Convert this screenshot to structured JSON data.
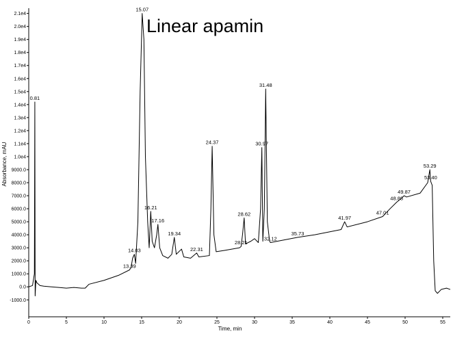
{
  "chart_data": {
    "type": "line",
    "title": "Linear apamin",
    "x_label": "Time, min",
    "y_label": "Absorbance, mAU",
    "xlim": [
      0,
      56
    ],
    "ylim": [
      -2300,
      21400
    ],
    "xticks": [
      0,
      5,
      10,
      15,
      20,
      25,
      30,
      35,
      40,
      45,
      50,
      55
    ],
    "yticks": [
      {
        "value": 21000,
        "label": "2.1e4"
      },
      {
        "value": 20000,
        "label": "2.0e4"
      },
      {
        "value": 19000,
        "label": "1.9e4"
      },
      {
        "value": 18000,
        "label": "1.8e4"
      },
      {
        "value": 17000,
        "label": "1.7e4"
      },
      {
        "value": 16000,
        "label": "1.6e4"
      },
      {
        "value": 15000,
        "label": "1.5e4"
      },
      {
        "value": 14000,
        "label": "1.4e4"
      },
      {
        "value": 13000,
        "label": "1.3e4"
      },
      {
        "value": 12000,
        "label": "1.2e4"
      },
      {
        "value": 11000,
        "label": "1.1e4"
      },
      {
        "value": 10000,
        "label": "1.0e4"
      },
      {
        "value": 9000,
        "label": "9000.0"
      },
      {
        "value": 8000,
        "label": "8000.0"
      },
      {
        "value": 7000,
        "label": "7000.0"
      },
      {
        "value": 6000,
        "label": "6000.0"
      },
      {
        "value": 5000,
        "label": "5000.0"
      },
      {
        "value": 4000,
        "label": "4000.0"
      },
      {
        "value": 3000,
        "label": "3000.0"
      },
      {
        "value": 2000,
        "label": "2000.0"
      },
      {
        "value": 1000,
        "label": "1000.0"
      },
      {
        "value": 0,
        "label": "0.0"
      },
      {
        "value": -1000,
        "label": "-1000.0"
      }
    ],
    "series": [
      {
        "color": "#000000",
        "x": [
          0,
          0.5,
          0.75,
          0.81,
          0.85,
          0.95,
          1.1,
          1.5,
          2,
          3,
          4,
          5,
          6,
          7,
          7.5,
          8,
          10,
          12,
          13.39,
          13.6,
          13.8,
          14.03,
          14.2,
          14.5,
          14.8,
          15.07,
          15.3,
          15.5,
          15.8,
          16.0,
          16.21,
          16.4,
          16.7,
          17.0,
          17.16,
          17.4,
          17.8,
          18.5,
          19.0,
          19.34,
          19.6,
          20.3,
          20.6,
          21.5,
          22.31,
          22.6,
          24,
          24.2,
          24.37,
          24.6,
          24.9,
          26,
          28.0,
          28.21,
          28.4,
          28.62,
          28.8,
          29.5,
          30.0,
          30.5,
          30.8,
          30.97,
          31.1,
          31.3,
          31.48,
          31.7,
          32.0,
          32.12,
          33,
          35.73,
          38,
          41.5,
          41.97,
          42.3,
          45,
          47.01,
          48,
          48.88,
          49.5,
          49.87,
          50.2,
          52,
          53.0,
          53.29,
          53.4,
          53.6,
          53.8,
          54.0,
          54.3,
          54.8,
          55.5,
          56
        ],
        "values": [
          0,
          100,
          1000,
          14200,
          -700,
          500,
          300,
          100,
          50,
          0,
          -50,
          -100,
          -50,
          -100,
          -100,
          200,
          500,
          900,
          1300,
          1500,
          2200,
          2500,
          1800,
          5000,
          15000,
          21000,
          19000,
          10000,
          5000,
          3000,
          5800,
          3500,
          3000,
          4000,
          4800,
          3000,
          2400,
          2200,
          2500,
          3800,
          2500,
          2900,
          2300,
          2200,
          2600,
          2300,
          2400,
          6000,
          10800,
          4000,
          2700,
          2800,
          3000,
          3100,
          4000,
          5300,
          3300,
          3500,
          3700,
          3400,
          6000,
          10700,
          3500,
          6000,
          15200,
          5000,
          3500,
          3400,
          3500,
          3800,
          4000,
          4400,
          5000,
          4600,
          5000,
          5400,
          6000,
          6500,
          6800,
          7000,
          6900,
          7200,
          8000,
          9000,
          8100,
          7800,
          2000,
          -300,
          -500,
          -200,
          -100,
          -200
        ]
      }
    ],
    "peaks": {
      "x": [
        0.81,
        13.39,
        14.03,
        15.07,
        16.21,
        17.16,
        19.34,
        22.31,
        24.37,
        28.21,
        28.62,
        30.97,
        31.48,
        32.12,
        35.73,
        41.97,
        47.01,
        48.88,
        49.87,
        53.29,
        53.4
      ],
      "values": [
        14200,
        1300,
        2500,
        21000,
        5800,
        4800,
        3800,
        2600,
        10800,
        3100,
        5300,
        10700,
        15200,
        3400,
        3800,
        5000,
        5400,
        6500,
        7000,
        9000,
        8100
      ],
      "labels": [
        "0.81",
        "13.39",
        "14.03",
        "15.07",
        "16.21",
        "17.16",
        "19.34",
        "22.31",
        "24.37",
        "28.21",
        "28.62",
        "30.97",
        "31.48",
        "32.12",
        "35.73",
        "41.97",
        "47.01",
        "48.88",
        "49.87",
        "53.29",
        "53.40"
      ]
    }
  }
}
